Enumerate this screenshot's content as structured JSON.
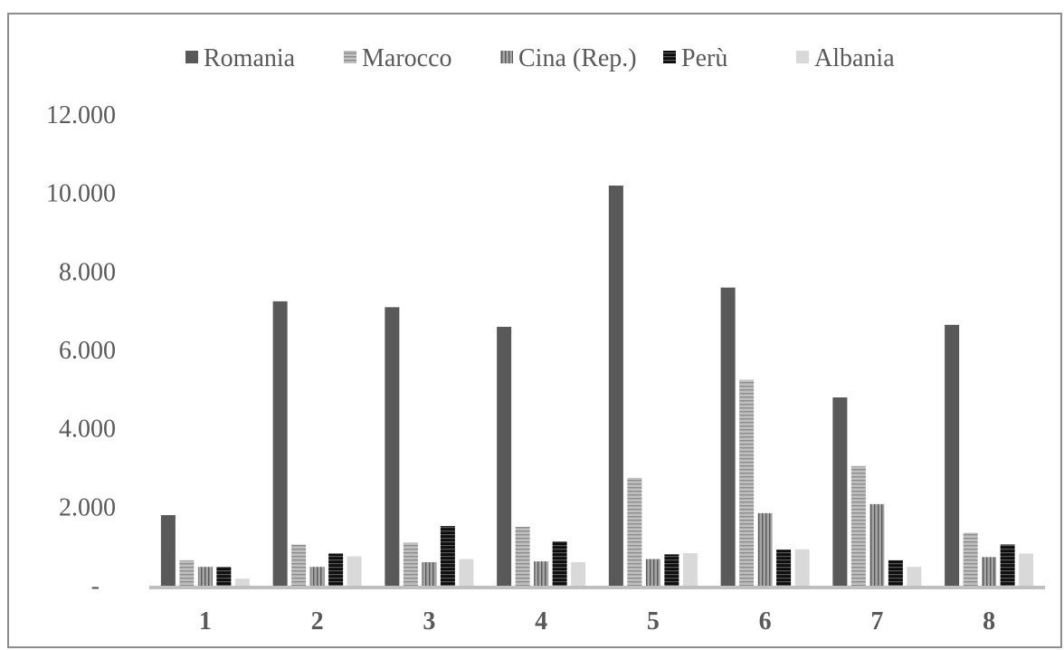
{
  "chart_data": {
    "type": "bar",
    "categories": [
      "1",
      "2",
      "3",
      "4",
      "5",
      "6",
      "7",
      "8"
    ],
    "series": [
      {
        "name": "Romania",
        "values": [
          1800,
          7250,
          7100,
          6600,
          10200,
          7600,
          4800,
          6650
        ],
        "color": "#595959",
        "pattern": "solid"
      },
      {
        "name": "Marocco",
        "values": [
          650,
          1050,
          1100,
          1500,
          2750,
          5250,
          3050,
          1350
        ],
        "color": "#a6a6a6",
        "pattern": "hstripe"
      },
      {
        "name": "Cina (Rep.)",
        "values": [
          480,
          480,
          600,
          620,
          680,
          1850,
          2080,
          730
        ],
        "color": "#7f7f7f",
        "pattern": "vstripe"
      },
      {
        "name": "Perù",
        "values": [
          480,
          820,
          1520,
          1130,
          800,
          920,
          650,
          1050
        ],
        "color": "#262626",
        "pattern": "hstripe"
      },
      {
        "name": "Albania",
        "values": [
          180,
          750,
          680,
          600,
          830,
          930,
          480,
          820
        ],
        "color": "#d9d9d9",
        "pattern": "solid"
      }
    ],
    "yticks": [
      "-",
      "2.000",
      "4.000",
      "6.000",
      "8.000",
      "10.000",
      "12.000"
    ],
    "ylim": [
      0,
      12000
    ],
    "legend_position": "top",
    "grid": false
  }
}
